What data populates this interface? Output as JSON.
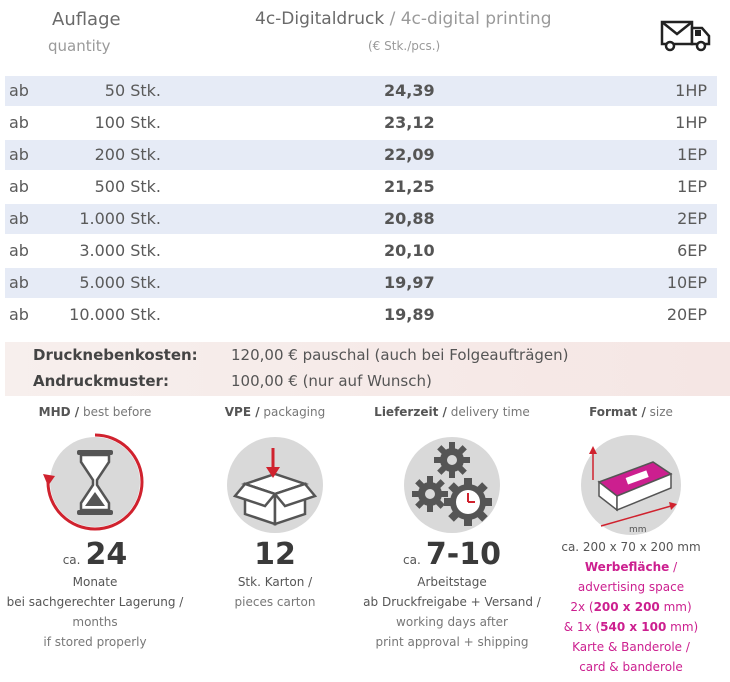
{
  "header": {
    "quantity_de": "Auflage",
    "quantity_en": "quantity",
    "print_de": "4c-Digitaldruck",
    "print_sep": " / ",
    "print_en": "4c-digital printing",
    "unit": "(€ Stk./pcs.)",
    "shipping_icon": "delivery-truck-icon"
  },
  "price_rows": [
    {
      "prefix": "ab",
      "quantity": "50 Stk.",
      "price": "24,39",
      "shipping": "1HP"
    },
    {
      "prefix": "ab",
      "quantity": "100 Stk.",
      "price": "23,12",
      "shipping": "1HP"
    },
    {
      "prefix": "ab",
      "quantity": "200 Stk.",
      "price": "22,09",
      "shipping": "1EP"
    },
    {
      "prefix": "ab",
      "quantity": "500 Stk.",
      "price": "21,25",
      "shipping": "1EP"
    },
    {
      "prefix": "ab",
      "quantity": "1.000 Stk.",
      "price": "20,88",
      "shipping": "2EP"
    },
    {
      "prefix": "ab",
      "quantity": "3.000 Stk.",
      "price": "20,10",
      "shipping": "6EP"
    },
    {
      "prefix": "ab",
      "quantity": "5.000 Stk.",
      "price": "19,97",
      "shipping": "10EP"
    },
    {
      "prefix": "ab",
      "quantity": "10.000 Stk.",
      "price": "19,89",
      "shipping": "20EP"
    }
  ],
  "costs": {
    "side_costs_label": "Drucknebenkosten:",
    "side_costs_value": "120,00 € pauschal (auch bei Folgeaufträgen)",
    "proof_label": "Andruckmuster:",
    "proof_value": "100,00 € (nur auf Wunsch)"
  },
  "features": {
    "mhd": {
      "title_de": "MHD /",
      "title_en": " best before",
      "icon": "hourglass-icon",
      "ca": "ca.",
      "value": "24",
      "unit_de": "Monate",
      "cond_de": "bei sachgerechter Lagerung /",
      "unit_en": "months",
      "cond_en": "if stored properly"
    },
    "vpe": {
      "title_de": "VPE /",
      "title_en": " packaging",
      "icon": "box-icon",
      "value": "12",
      "unit_de": "Stk. Karton /",
      "unit_en": "pieces carton"
    },
    "delivery": {
      "title_de": "Lieferzeit /",
      "title_en": " delivery time",
      "icon": "gears-clock-icon",
      "ca": "ca.",
      "value": "7-10",
      "unit_de": "Arbeitstage",
      "cond_de": "ab Druckfreigabe + Versand /",
      "unit_en": "working days after",
      "cond_en": "print approval + shipping"
    },
    "format": {
      "title_de": "Format /",
      "title_en": " size",
      "icon": "eraser-dimensions-icon",
      "dim_label": "mm",
      "size": "ca. 200 x 70 x 200 mm",
      "area_title": "Werbefläche",
      "area_slash": " /",
      "area_en": "advertising space",
      "area_line1_pre": "2x (",
      "area_line1_bold": "200 x 200",
      "area_line1_post": " mm)",
      "area_line2_pre": "& 1x (",
      "area_line2_bold": "540 x 100",
      "area_line2_post": " mm)",
      "card_de": "Karte & Banderole /",
      "card_en": "card & banderole",
      "colors": {
        "accent": "#cc1f8f"
      }
    },
    "colors": {
      "accent_red": "#d0222e",
      "circle_grey": "#d9d9d9"
    }
  }
}
